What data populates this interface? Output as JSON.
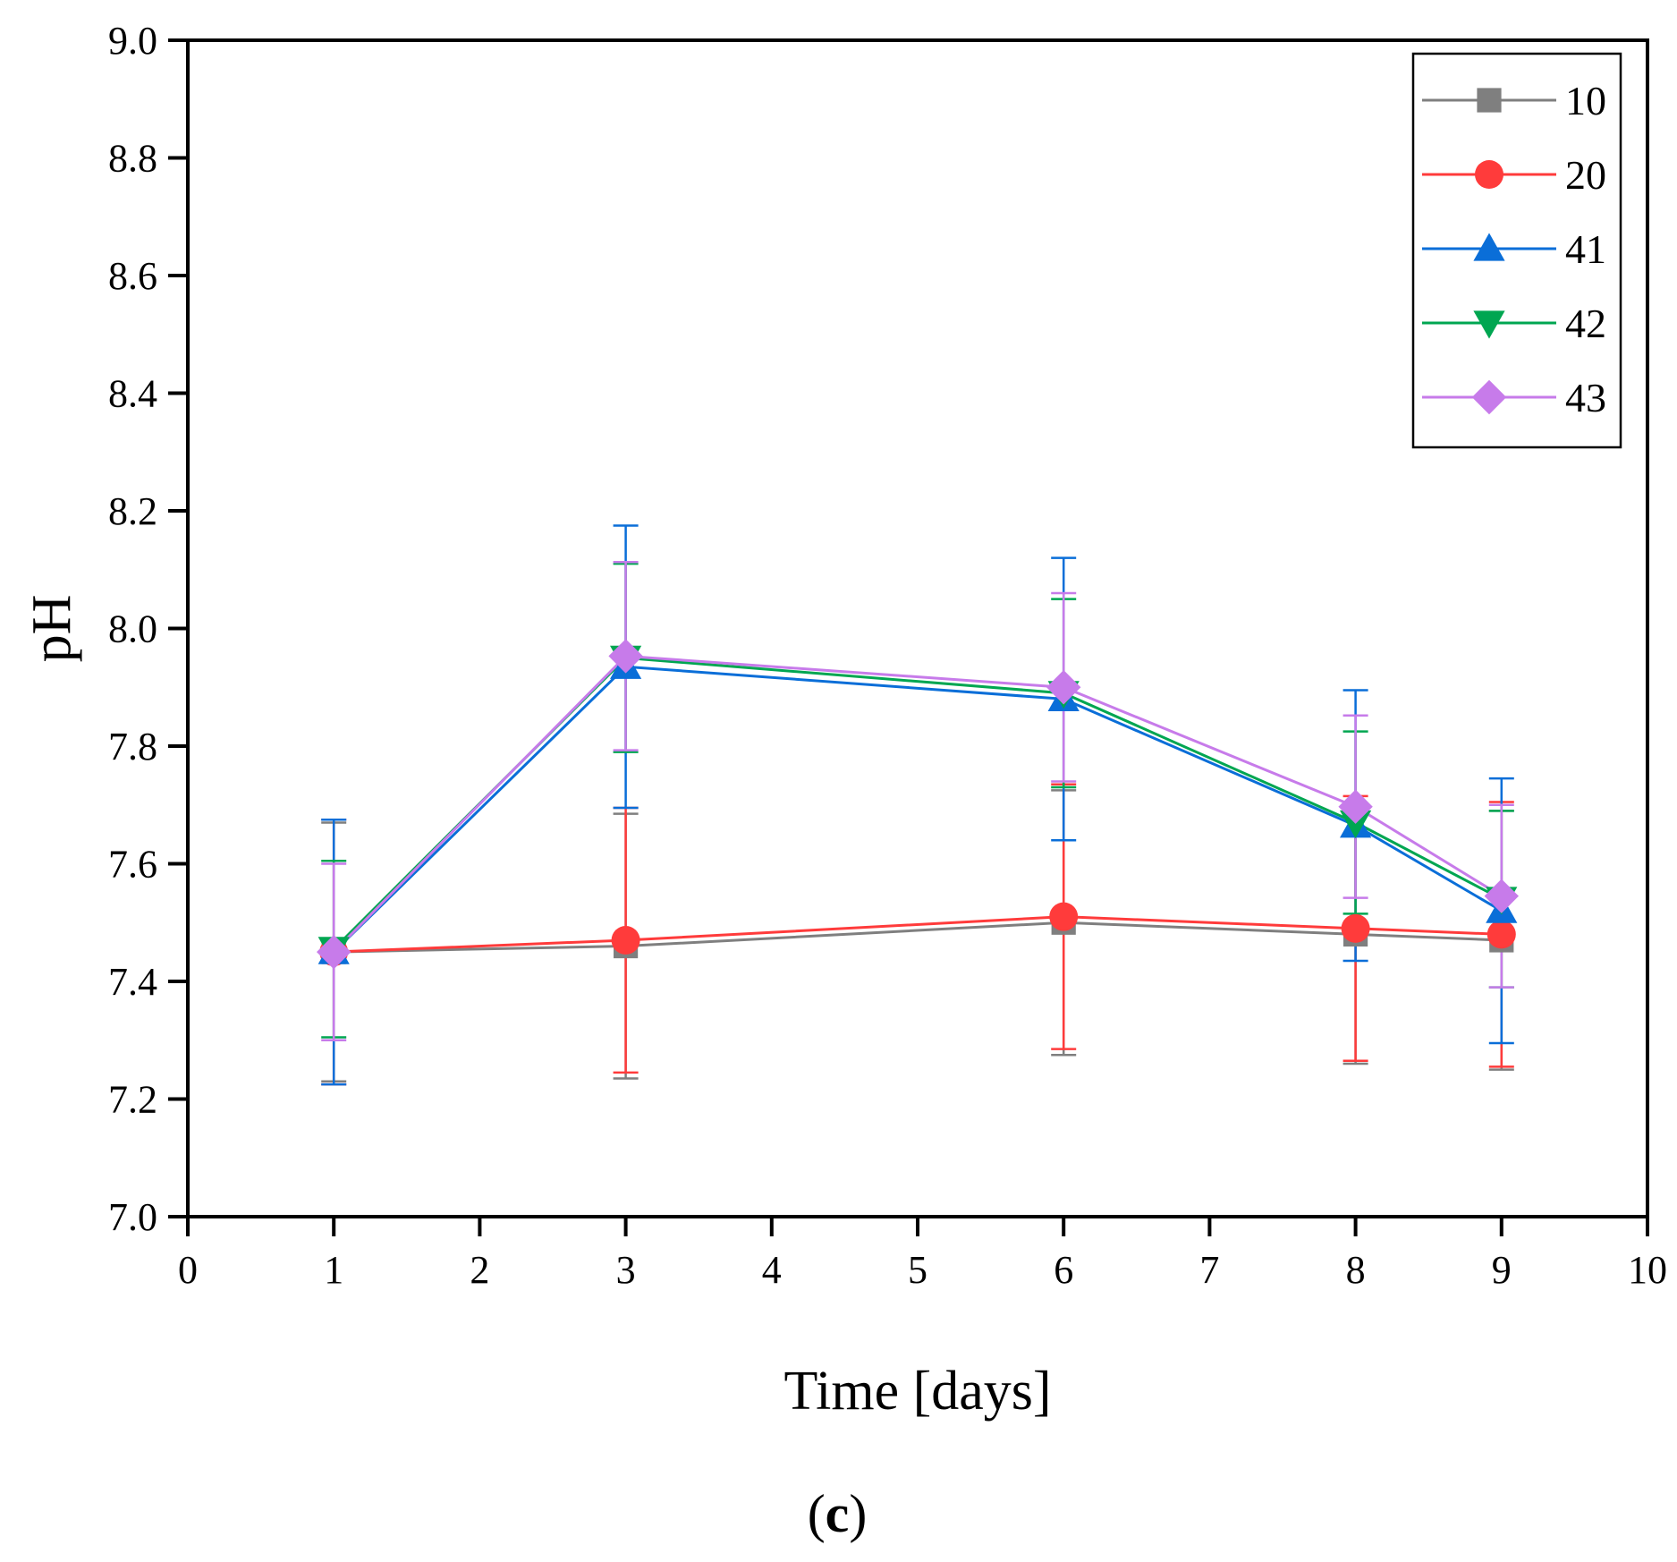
{
  "chart_data": {
    "type": "line",
    "title": "",
    "xlabel": "Time [days]",
    "ylabel": "pH",
    "caption_open": "(",
    "caption_letter": "c",
    "caption_close": ")",
    "xlim": [
      0,
      10
    ],
    "ylim": [
      7.0,
      9.0
    ],
    "xticks": [
      0,
      1,
      2,
      3,
      4,
      5,
      6,
      7,
      8,
      9,
      10
    ],
    "xtick_labels": [
      "0",
      "1",
      "2",
      "3",
      "4",
      "5",
      "6",
      "7",
      "8",
      "9",
      "10"
    ],
    "yticks": [
      7.0,
      7.2,
      7.4,
      7.6,
      7.8,
      8.0,
      8.2,
      8.4,
      8.6,
      8.8,
      9.0
    ],
    "ytick_labels": [
      "7.0",
      "7.2",
      "7.4",
      "7.6",
      "7.8",
      "8.0",
      "8.2",
      "8.4",
      "8.6",
      "8.8",
      "9.0"
    ],
    "legend_position": "top-right",
    "grid": false,
    "x": [
      1,
      3,
      6,
      8,
      9
    ],
    "series": [
      {
        "name": "10",
        "color": "#7f7f7f",
        "marker": "square",
        "values": [
          7.45,
          7.46,
          7.5,
          7.48,
          7.47
        ],
        "errors": [
          0.22,
          0.225,
          0.225,
          0.22,
          0.22
        ]
      },
      {
        "name": "20",
        "color": "#ff3b3b",
        "marker": "circle",
        "values": [
          7.45,
          7.47,
          7.51,
          7.49,
          7.48
        ],
        "errors": [
          0.225,
          0.225,
          0.225,
          0.225,
          0.225
        ]
      },
      {
        "name": "41",
        "color": "#0a6ed8",
        "marker": "triangle-up",
        "values": [
          7.45,
          7.935,
          7.88,
          7.665,
          7.52
        ],
        "errors": [
          0.225,
          0.24,
          0.24,
          0.23,
          0.225
        ]
      },
      {
        "name": "42",
        "color": "#00a651",
        "marker": "triangle-down",
        "values": [
          7.455,
          7.95,
          7.89,
          7.67,
          7.54
        ],
        "errors": [
          0.15,
          0.16,
          0.16,
          0.155,
          0.15
        ]
      },
      {
        "name": "43",
        "color": "#c77bea",
        "marker": "diamond",
        "values": [
          7.45,
          7.953,
          7.9,
          7.697,
          7.545
        ],
        "errors": [
          0.15,
          0.16,
          0.16,
          0.155,
          0.155
        ]
      }
    ]
  }
}
